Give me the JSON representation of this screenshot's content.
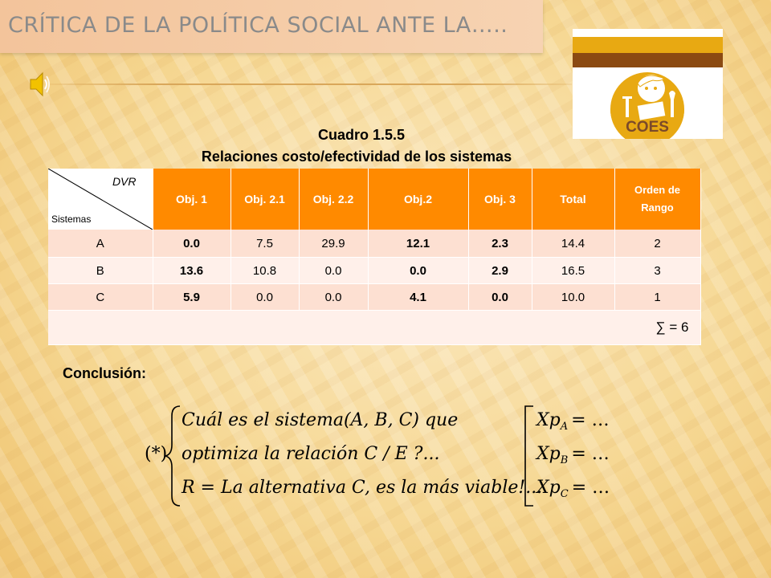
{
  "slide": {
    "title": "CRÍTICA DE LA POLÍTICA SOCIAL ANTE LA…..",
    "caption_line1": "Cuadro 1.5.5",
    "caption_line2": "Relaciones costo/efectividad de los sistemas",
    "logo_text": "COES",
    "conclusion_label": "Conclusión:"
  },
  "table": {
    "corner_top": "DVR",
    "corner_bottom": "Sistemas",
    "headers": [
      "Obj. 1",
      "Obj. 2.1",
      "Obj. 2.2",
      "Obj.2",
      "Obj. 3",
      "Total"
    ],
    "rank_header_line1": "Orden de",
    "rank_header_line2": "Rango",
    "rows": [
      [
        "A",
        "0.0",
        "7.5",
        "29.9",
        "12.1",
        "2.3",
        "14.4",
        "2"
      ],
      [
        "B",
        "13.6",
        "10.8",
        "0.0",
        "0.0",
        "2.9",
        "16.5",
        "3"
      ],
      [
        "C",
        "5.9",
        "0.0",
        "0.0",
        "4.1",
        "0.0",
        "10.0",
        "1"
      ]
    ],
    "sum_text": "∑ = 6"
  },
  "formula": {
    "marker": "(*)",
    "line1": "Cuál es el sistema(A, B, C) que",
    "line2": "optimiza la relación C / E ?...",
    "line3": "R = La alternativa C, es la más viable!...",
    "right1_base": "Xp",
    "right1_sub": "A",
    "right2_base": "Xp",
    "right2_sub": "B",
    "right3_base": "Xp",
    "right3_sub": "C",
    "right_tail": "= …"
  },
  "colors": {
    "header_orange": "#ff8a00",
    "row_dark": "#fde0d2",
    "row_light": "#fff0ea",
    "title_bar": "#f3c49b",
    "logo_brown": "#8b4a12",
    "logo_gold": "#e7a912"
  },
  "icons": {
    "audio": "speaker-icon"
  }
}
